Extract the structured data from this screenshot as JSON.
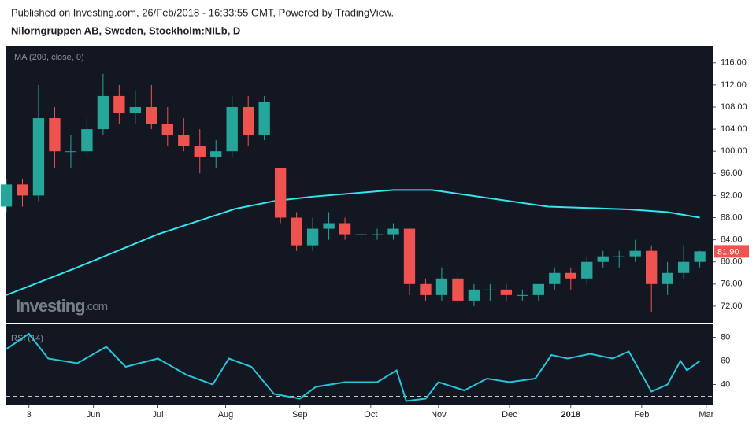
{
  "header": {
    "published": "Published on Investing.com, 26/Feb/2018 - 16:33:55 GMT, Powered by TradingView.",
    "symbol": "Nilorngruppen AB, Sweden, Stockholm:NILb, D"
  },
  "chart_data": [
    {
      "type": "candlestick",
      "indicator_label": "MA (200, close, 0)",
      "logo": "Investing",
      "logo_suffix": ".com",
      "x": [
        0,
        5,
        10,
        15,
        20,
        25,
        30,
        35,
        40,
        45,
        50,
        55,
        60,
        65,
        70,
        75,
        80,
        85,
        90,
        95,
        100,
        105,
        110,
        115,
        120,
        125,
        130,
        135,
        140,
        145,
        150,
        155,
        160,
        165,
        170,
        175,
        180,
        185,
        190,
        195,
        200,
        205,
        210,
        215
      ],
      "open": [
        90,
        94,
        92,
        106,
        100,
        100,
        104,
        110,
        107,
        108,
        105,
        103,
        101,
        99,
        100,
        108,
        103,
        97,
        88,
        83,
        86,
        87,
        85,
        85,
        85,
        86,
        76,
        74,
        77,
        73,
        75,
        75,
        74,
        74,
        76,
        78,
        77,
        80,
        81,
        81,
        82,
        76,
        78,
        80
      ],
      "high": [
        95,
        95,
        112,
        108,
        103,
        106,
        114,
        112,
        111,
        112,
        108,
        106,
        104,
        102,
        110,
        110,
        110,
        97,
        89,
        88,
        89,
        88,
        86,
        86,
        87,
        86,
        77,
        79,
        78,
        76,
        76,
        76,
        75,
        76,
        79,
        79,
        81,
        82,
        82,
        84,
        83,
        80,
        83,
        82
      ],
      "low": [
        89,
        90,
        91,
        97,
        97,
        99,
        103,
        105,
        105,
        104,
        101,
        100,
        96,
        97,
        99,
        101,
        102,
        87,
        82,
        82,
        84,
        84,
        84,
        84,
        84,
        74,
        73,
        73,
        72,
        72,
        73,
        73,
        73,
        73,
        75,
        75,
        76,
        79,
        79,
        80,
        71,
        74,
        77,
        79
      ],
      "close": [
        94,
        92,
        106,
        100,
        100,
        104,
        110,
        107,
        108,
        105,
        103,
        101,
        99,
        100,
        108,
        103,
        109,
        88,
        83,
        86,
        87,
        85,
        85,
        85,
        86,
        76,
        74,
        77,
        73,
        75,
        75,
        74,
        74,
        76,
        78,
        77,
        80,
        81,
        81,
        82,
        76,
        78,
        80,
        81.9
      ],
      "up_color": "#26a69a",
      "down_color": "#ef5350",
      "ma": {
        "x": [
          0,
          22,
          47,
          71,
          83,
          95,
          120,
          132,
          156,
          168,
          193,
          205,
          215
        ],
        "values": [
          74,
          79,
          85,
          89.6,
          91,
          91.8,
          93,
          93,
          91,
          90,
          89.5,
          89,
          88
        ],
        "color": "#33e6f0"
      },
      "last": {
        "value": 81.9,
        "label": "81.90"
      },
      "xlim": [
        0,
        219
      ],
      "ylim": [
        69,
        119.1
      ],
      "yticks": [
        {
          "value": 72,
          "label": "72.00"
        },
        {
          "value": 76,
          "label": "76.00"
        },
        {
          "value": 80,
          "label": "80.00"
        },
        {
          "value": 84,
          "label": "84.00"
        },
        {
          "value": 88,
          "label": "88.00"
        },
        {
          "value": 92,
          "label": "92.00"
        },
        {
          "value": 96,
          "label": "96.00"
        },
        {
          "value": 100,
          "label": "100.00"
        },
        {
          "value": 104,
          "label": "104.00"
        },
        {
          "value": 108,
          "label": "108.00"
        },
        {
          "value": 112,
          "label": "112.00"
        },
        {
          "value": 116,
          "label": "116.00"
        }
      ]
    },
    {
      "type": "line",
      "name": "RSI (14)",
      "color": "#26c6da",
      "x": [
        0,
        7,
        13,
        22,
        31,
        37,
        47,
        56,
        64,
        69,
        76,
        83,
        91,
        96,
        105,
        115,
        121,
        124,
        130,
        134,
        142,
        149,
        156,
        164,
        169,
        174,
        181,
        188,
        193,
        200,
        205,
        209,
        211,
        215
      ],
      "values": [
        70,
        83,
        62,
        58,
        72,
        55,
        62,
        48,
        40,
        62,
        55,
        32,
        28,
        38,
        42,
        42,
        52,
        26,
        28,
        42,
        35,
        45,
        42,
        45,
        65,
        62,
        66,
        62,
        68,
        34,
        40,
        60,
        52,
        60
      ],
      "bands": [
        30,
        70
      ],
      "xlim": [
        0,
        219
      ],
      "ylim": [
        23,
        91
      ],
      "yticks": [
        40,
        60,
        80
      ],
      "xticks": [
        {
          "value": 7,
          "label": "3"
        },
        {
          "value": 27,
          "label": "Jun"
        },
        {
          "value": 47,
          "label": "Jul"
        },
        {
          "value": 68,
          "label": "Aug"
        },
        {
          "value": 91,
          "label": "Sep"
        },
        {
          "value": 113,
          "label": "Oct"
        },
        {
          "value": 134,
          "label": "Nov"
        },
        {
          "value": 156,
          "label": "Dec"
        },
        {
          "value": 175,
          "label": "2018"
        },
        {
          "value": 197,
          "label": "Feb"
        },
        {
          "value": 217,
          "label": "Mar"
        }
      ]
    }
  ]
}
